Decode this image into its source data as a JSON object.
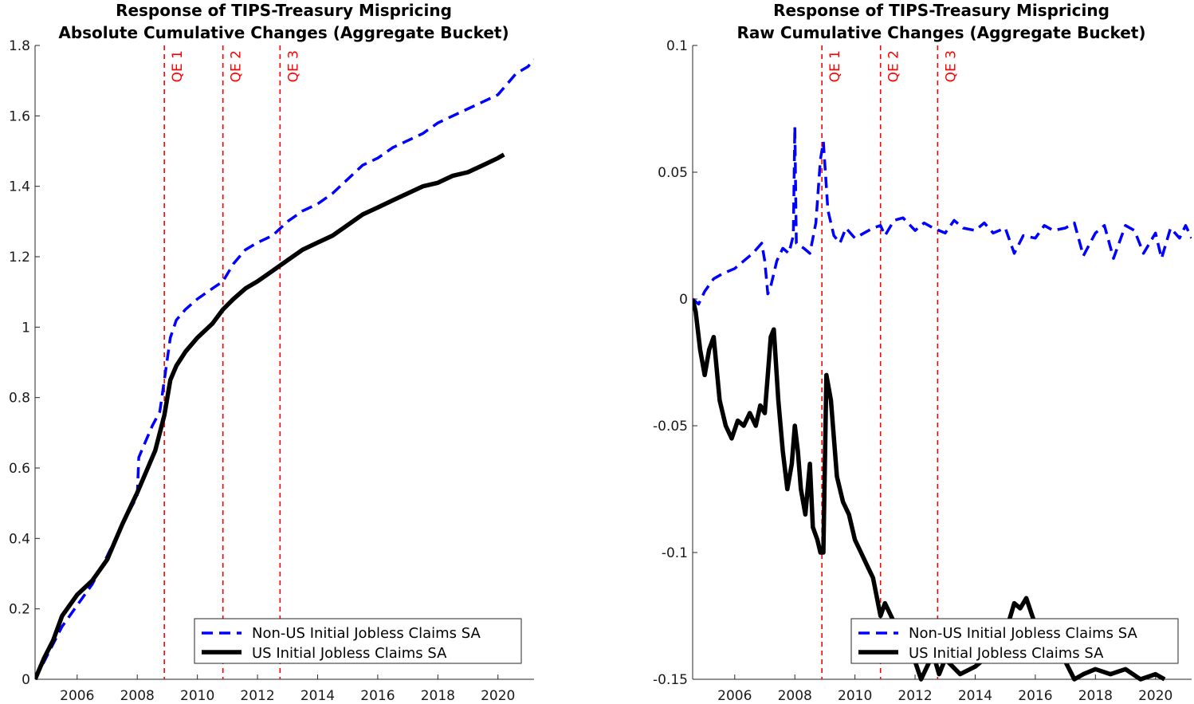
{
  "colors": {
    "non_us": "#0000ff",
    "us": "#000000",
    "qe": "#ff0000",
    "axis": "#262626"
  },
  "chart_data": [
    {
      "type": "line",
      "title": "Response of TIPS-Treasury Mispricing",
      "subtitle": "Absolute Cumulative Changes (Aggregate Bucket)",
      "xlabel": "",
      "ylabel": "",
      "xlim": [
        2004.6,
        2021.2
      ],
      "ylim": [
        0,
        1.8
      ],
      "xticks": [
        2006,
        2008,
        2010,
        2012,
        2014,
        2016,
        2018,
        2020
      ],
      "yticks": [
        0,
        0.2,
        0.4,
        0.6,
        0.8,
        1,
        1.2,
        1.4,
        1.6,
        1.8
      ],
      "ytick_labels": [
        "0",
        "0.2",
        "0.4",
        "0.6",
        "0.8",
        "1",
        "1.2",
        "1.4",
        "1.6",
        "1.8"
      ],
      "grid": false,
      "legend_position": "bottom-right",
      "vlines": [
        {
          "x": 2008.9,
          "label": "QE 1"
        },
        {
          "x": 2010.85,
          "label": "QE 2"
        },
        {
          "x": 2012.75,
          "label": "QE 3"
        }
      ],
      "series": [
        {
          "name": "Non-US Initial Jobless Claims SA",
          "style": "dashed",
          "x": [
            2004.6,
            2004.9,
            2005.2,
            2005.5,
            2006.0,
            2006.5,
            2007.0,
            2007.5,
            2008.0,
            2008.05,
            2008.3,
            2008.5,
            2008.75,
            2008.9,
            2009.1,
            2009.3,
            2009.6,
            2010.0,
            2010.5,
            2010.85,
            2011.2,
            2011.6,
            2012.0,
            2012.5,
            2013.0,
            2013.5,
            2014.0,
            2014.5,
            2015.0,
            2015.5,
            2016.0,
            2016.5,
            2017.0,
            2017.5,
            2018.0,
            2018.5,
            2019.0,
            2019.5,
            2020.0,
            2020.3,
            2020.6,
            2021.0,
            2021.2
          ],
          "y": [
            0,
            0.05,
            0.1,
            0.15,
            0.21,
            0.27,
            0.35,
            0.44,
            0.52,
            0.63,
            0.68,
            0.72,
            0.76,
            0.85,
            0.97,
            1.02,
            1.05,
            1.08,
            1.11,
            1.13,
            1.18,
            1.22,
            1.24,
            1.26,
            1.3,
            1.33,
            1.35,
            1.38,
            1.42,
            1.46,
            1.48,
            1.51,
            1.53,
            1.55,
            1.58,
            1.6,
            1.62,
            1.64,
            1.66,
            1.69,
            1.72,
            1.74,
            1.76
          ]
        },
        {
          "name": "US Initial Jobless Claims SA",
          "style": "solid",
          "x": [
            2004.6,
            2004.9,
            2005.2,
            2005.5,
            2006.0,
            2006.5,
            2007.0,
            2007.5,
            2008.0,
            2008.3,
            2008.6,
            2008.9,
            2009.1,
            2009.3,
            2009.6,
            2010.0,
            2010.5,
            2010.85,
            2011.2,
            2011.6,
            2012.0,
            2012.5,
            2013.0,
            2013.5,
            2014.0,
            2014.5,
            2015.0,
            2015.5,
            2016.0,
            2016.5,
            2017.0,
            2017.5,
            2018.0,
            2018.5,
            2019.0,
            2019.5,
            2020.0,
            2020.2
          ],
          "y": [
            0,
            0.06,
            0.11,
            0.18,
            0.24,
            0.28,
            0.34,
            0.44,
            0.53,
            0.59,
            0.65,
            0.75,
            0.85,
            0.89,
            0.93,
            0.97,
            1.01,
            1.05,
            1.08,
            1.11,
            1.13,
            1.16,
            1.19,
            1.22,
            1.24,
            1.26,
            1.29,
            1.32,
            1.34,
            1.36,
            1.38,
            1.4,
            1.41,
            1.43,
            1.44,
            1.46,
            1.48,
            1.49
          ]
        }
      ]
    },
    {
      "type": "line",
      "title": "Response of TIPS-Treasury Mispricing",
      "subtitle": "Raw Cumulative Changes (Aggregate Bucket)",
      "xlabel": "",
      "ylabel": "",
      "xlim": [
        2004.6,
        2021.2
      ],
      "ylim": [
        -0.15,
        0.1
      ],
      "xticks": [
        2006,
        2008,
        2010,
        2012,
        2014,
        2016,
        2018,
        2020
      ],
      "yticks": [
        -0.15,
        -0.1,
        -0.05,
        0,
        0.05,
        0.1
      ],
      "ytick_labels": [
        "-0.15",
        "-0.1",
        "-0.05",
        "0",
        "0.05",
        "0.1"
      ],
      "grid": false,
      "legend_position": "bottom-right",
      "vlines": [
        {
          "x": 2008.9,
          "label": "QE 1"
        },
        {
          "x": 2010.85,
          "label": "QE 2"
        },
        {
          "x": 2012.75,
          "label": "QE 3"
        }
      ],
      "series": [
        {
          "name": "Non-US Initial Jobless Claims SA",
          "style": "dashed",
          "x": [
            2004.6,
            2004.8,
            2005.0,
            2005.3,
            2005.6,
            2006.0,
            2006.3,
            2006.6,
            2006.9,
            2007.0,
            2007.1,
            2007.2,
            2007.4,
            2007.6,
            2007.8,
            2007.95,
            2008.0,
            2008.05,
            2008.3,
            2008.5,
            2008.7,
            2008.85,
            2008.95,
            2009.1,
            2009.3,
            2009.5,
            2009.7,
            2010.0,
            2010.3,
            2010.6,
            2010.85,
            2011.0,
            2011.3,
            2011.6,
            2012.0,
            2012.3,
            2012.6,
            2013.0,
            2013.3,
            2013.6,
            2014.0,
            2014.3,
            2014.6,
            2015.0,
            2015.3,
            2015.6,
            2016.0,
            2016.3,
            2016.6,
            2017.0,
            2017.3,
            2017.6,
            2018.0,
            2018.3,
            2018.6,
            2019.0,
            2019.3,
            2019.6,
            2020.0,
            2020.2,
            2020.5,
            2020.8,
            2021.0,
            2021.2
          ],
          "y": [
            0,
            -0.002,
            0.003,
            0.008,
            0.01,
            0.012,
            0.015,
            0.018,
            0.022,
            0.015,
            0.002,
            0.005,
            0.015,
            0.02,
            0.018,
            0.025,
            0.068,
            0.022,
            0.02,
            0.018,
            0.03,
            0.055,
            0.062,
            0.035,
            0.025,
            0.022,
            0.028,
            0.024,
            0.026,
            0.028,
            0.029,
            0.025,
            0.031,
            0.032,
            0.027,
            0.03,
            0.028,
            0.026,
            0.031,
            0.028,
            0.027,
            0.03,
            0.026,
            0.028,
            0.018,
            0.025,
            0.024,
            0.029,
            0.027,
            0.028,
            0.03,
            0.017,
            0.026,
            0.029,
            0.016,
            0.029,
            0.027,
            0.018,
            0.026,
            0.016,
            0.028,
            0.024,
            0.029,
            0.024
          ]
        },
        {
          "name": "US Initial Jobless Claims SA",
          "style": "solid",
          "x": [
            2004.6,
            2004.7,
            2004.85,
            2005.0,
            2005.15,
            2005.3,
            2005.5,
            2005.7,
            2005.9,
            2006.1,
            2006.3,
            2006.5,
            2006.7,
            2006.85,
            2007.0,
            2007.1,
            2007.2,
            2007.3,
            2007.45,
            2007.6,
            2007.75,
            2007.9,
            2008.0,
            2008.1,
            2008.2,
            2008.35,
            2008.5,
            2008.6,
            2008.75,
            2008.85,
            2008.95,
            2009.05,
            2009.2,
            2009.4,
            2009.6,
            2009.8,
            2010.0,
            2010.2,
            2010.4,
            2010.6,
            2010.85,
            2011.0,
            2011.2,
            2011.4,
            2011.6,
            2011.8,
            2012.0,
            2012.2,
            2012.4,
            2012.6,
            2012.8,
            2013.0,
            2013.5,
            2014.0,
            2014.5,
            2015.0,
            2015.3,
            2015.5,
            2015.7,
            2015.9,
            2016.1,
            2016.5,
            2017.0,
            2017.3,
            2017.6,
            2018.0,
            2018.5,
            2019.0,
            2019.5,
            2020.0,
            2020.3
          ],
          "y": [
            0,
            -0.005,
            -0.02,
            -0.03,
            -0.02,
            -0.015,
            -0.04,
            -0.05,
            -0.055,
            -0.048,
            -0.05,
            -0.045,
            -0.05,
            -0.042,
            -0.045,
            -0.03,
            -0.015,
            -0.012,
            -0.04,
            -0.06,
            -0.075,
            -0.065,
            -0.05,
            -0.06,
            -0.075,
            -0.085,
            -0.065,
            -0.09,
            -0.095,
            -0.1,
            -0.1,
            -0.03,
            -0.04,
            -0.07,
            -0.08,
            -0.085,
            -0.095,
            -0.1,
            -0.105,
            -0.11,
            -0.125,
            -0.12,
            -0.125,
            -0.13,
            -0.135,
            -0.138,
            -0.143,
            -0.15,
            -0.145,
            -0.14,
            -0.148,
            -0.142,
            -0.148,
            -0.145,
            -0.14,
            -0.132,
            -0.12,
            -0.122,
            -0.118,
            -0.125,
            -0.132,
            -0.14,
            -0.143,
            -0.15,
            -0.148,
            -0.146,
            -0.148,
            -0.146,
            -0.15,
            -0.148,
            -0.15
          ]
        }
      ]
    }
  ]
}
